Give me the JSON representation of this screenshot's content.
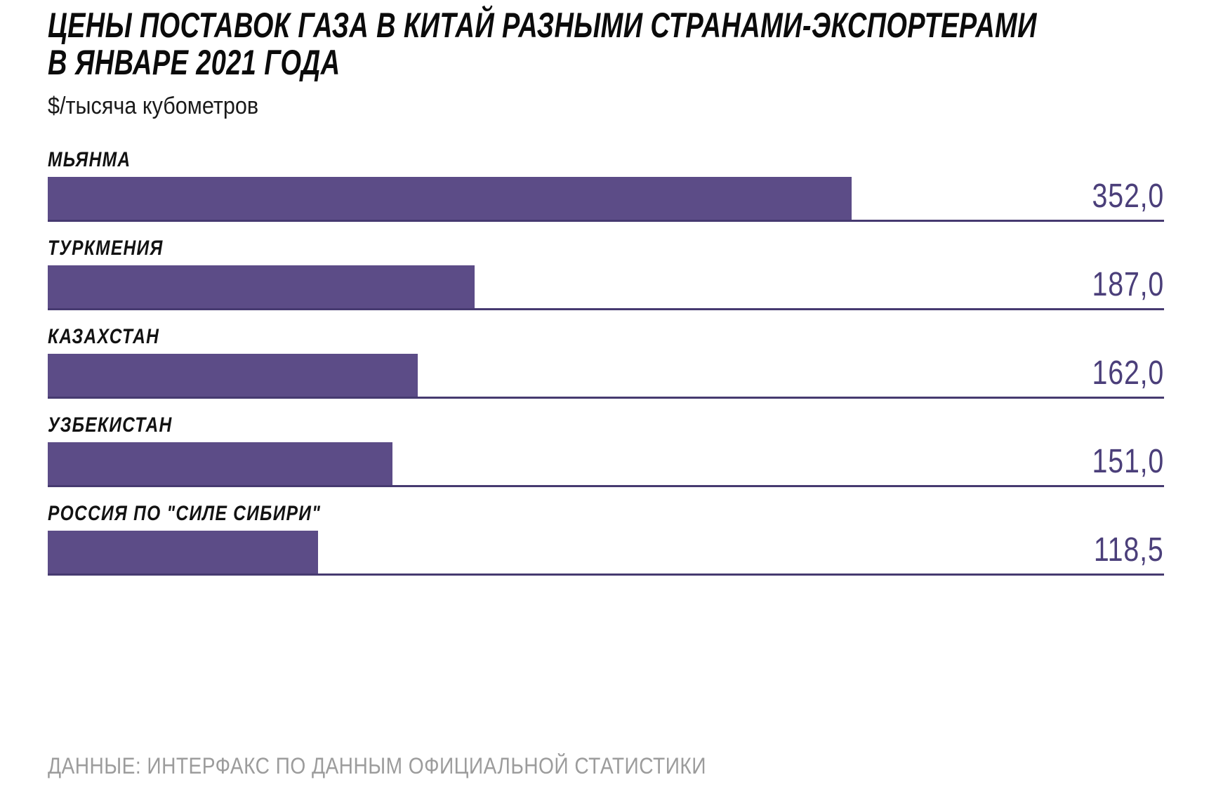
{
  "title_lines": [
    "ЦЕНЫ ПОСТАВОК ГАЗА В КИТАЙ РАЗНЫМИ СТРАНАМИ-ЭКСПОРТЕРАМИ",
    "В ЯНВАРЕ 2021 ГОДА"
  ],
  "subtitle": "$/тысяча кубометров",
  "source": "ДАННЫЕ: ИНТЕРФАКС ПО ДАННЫМ ОФИЦИАЛЬНОЙ СТАТИСТИКИ",
  "colors": {
    "bar": "#5c4c87",
    "baseline": "#463a70",
    "value_text": "#4b3f7a",
    "label_text": "#121212",
    "source_text": "#9c9c9c"
  },
  "chart_data": {
    "type": "bar",
    "orientation": "horizontal",
    "title": "ЦЕНЫ ПОСТАВОК ГАЗА В КИТАЙ РАЗНЫМИ СТРАНАМИ-ЭКСПОРТЕРАМИ В ЯНВАРЕ 2021 ГОДА",
    "unit_label": "$/тысяча кубометров",
    "categories": [
      "МЬЯНМА",
      "ТУРКМЕНИЯ",
      "КАЗАХСТАН",
      "УЗБЕКИСТАН",
      "РОССИЯ ПО \"СИЛЕ СИБИРИ\""
    ],
    "values": [
      352.0,
      187.0,
      162.0,
      151.0,
      118.5
    ],
    "value_labels": [
      "352,0",
      "187,0",
      "162,0",
      "151,0",
      "118,5"
    ],
    "xlim": [
      0,
      489
    ],
    "grid": false,
    "legend": false,
    "value_label_position": "right-aligned-to-baseline",
    "source": "ДАННЫЕ: ИНТЕРФАКС ПО ДАННЫМ ОФИЦИАЛЬНОЙ СТАТИСТИКИ"
  }
}
